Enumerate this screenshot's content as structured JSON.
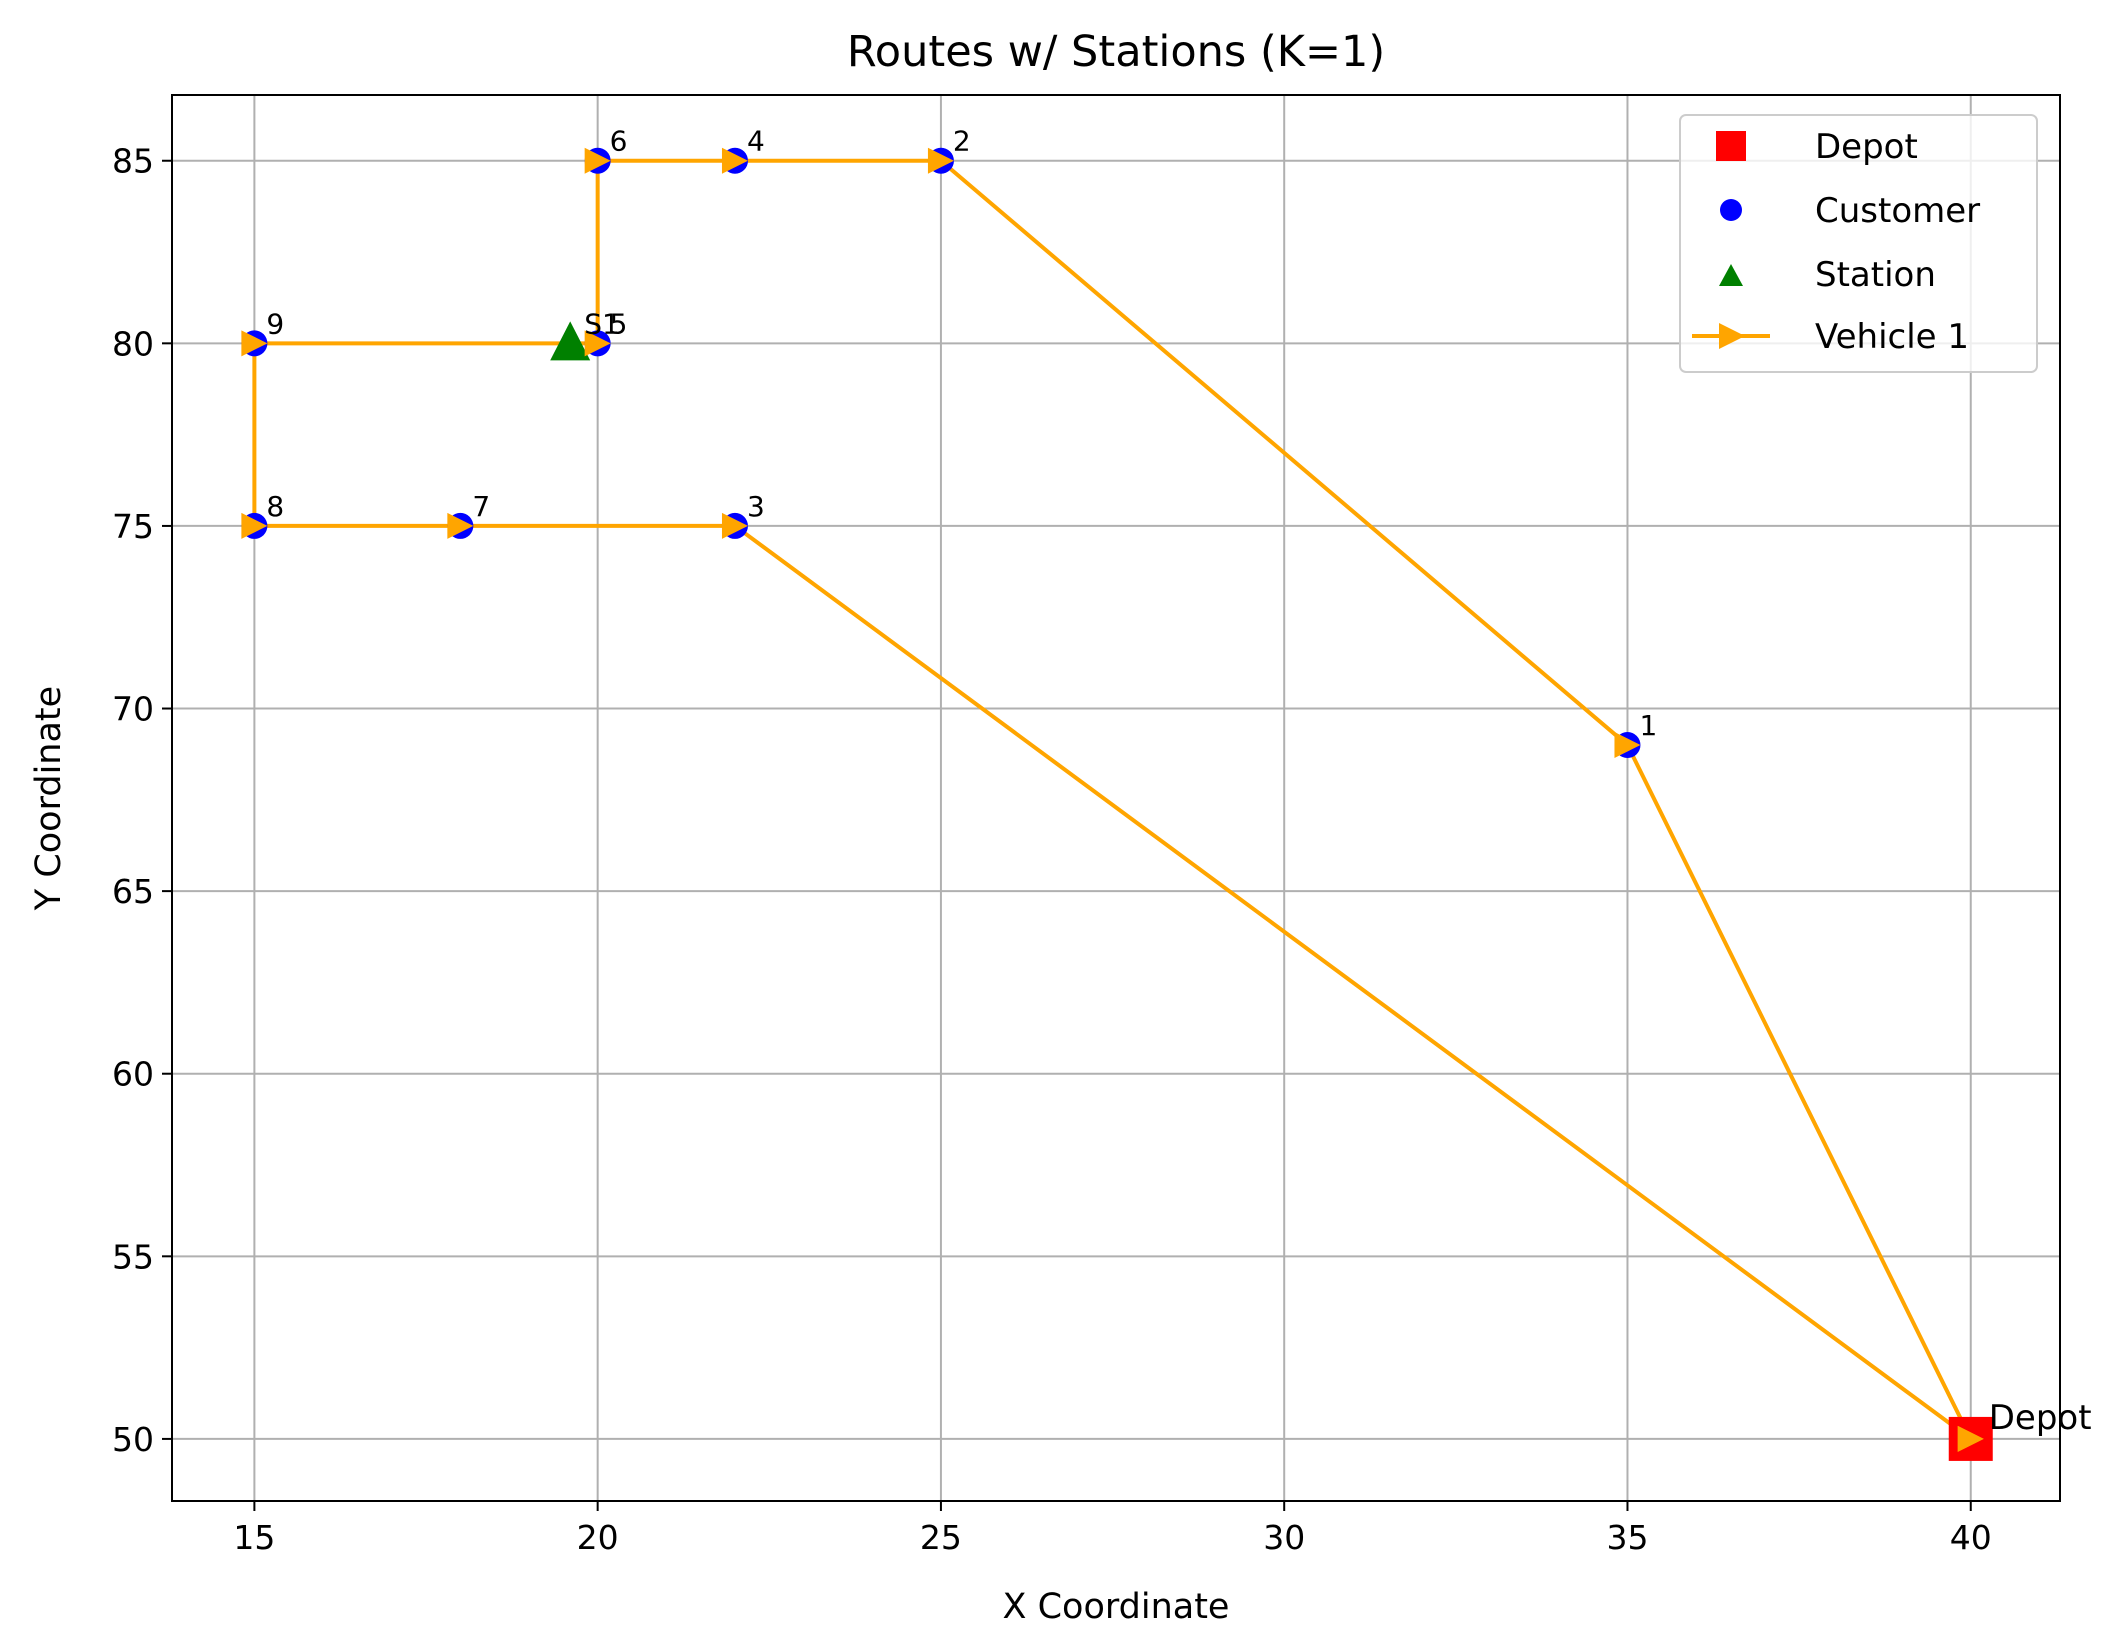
{
  "chart_data": {
    "type": "scatter",
    "title": "Routes w/ Stations (K=1)",
    "xlabel": "X Coordinate",
    "ylabel": "Y Coordinate",
    "xlim": [
      13.8,
      41.3
    ],
    "ylim": [
      48.3,
      86.8
    ],
    "x_ticks": [
      15,
      20,
      25,
      30,
      35,
      40
    ],
    "y_ticks": [
      50,
      55,
      60,
      65,
      70,
      75,
      80,
      85
    ],
    "grid": true,
    "legend_position": "top-right",
    "colors": {
      "depot": "#ff0000",
      "customer": "#0000ff",
      "station": "#008000",
      "route": "#ffa500",
      "grid": "#b0b0b0"
    },
    "depot": {
      "label": "Depot",
      "x": 40,
      "y": 50
    },
    "customers": [
      {
        "label": "1",
        "x": 35,
        "y": 69
      },
      {
        "label": "2",
        "x": 25,
        "y": 85
      },
      {
        "label": "3",
        "x": 22,
        "y": 75
      },
      {
        "label": "4",
        "x": 22,
        "y": 85
      },
      {
        "label": "5",
        "x": 20,
        "y": 80
      },
      {
        "label": "6",
        "x": 20,
        "y": 85
      },
      {
        "label": "7",
        "x": 18,
        "y": 75
      },
      {
        "label": "8",
        "x": 15,
        "y": 75
      },
      {
        "label": "9",
        "x": 15,
        "y": 80
      }
    ],
    "stations": [
      {
        "label": "S1",
        "x": 19.6,
        "y": 80
      }
    ],
    "routes": [
      {
        "name": "Vehicle 1",
        "x": [
          40,
          35,
          25,
          22,
          20,
          20,
          15,
          15,
          18,
          22,
          40
        ],
        "y": [
          50,
          69,
          85,
          85,
          85,
          80,
          80,
          75,
          75,
          75,
          50
        ]
      }
    ],
    "legend": [
      {
        "label": "Depot",
        "marker": "square"
      },
      {
        "label": "Customer",
        "marker": "circle"
      },
      {
        "label": "Station",
        "marker": "triangle"
      },
      {
        "label": "Vehicle 1",
        "marker": "line-arrow"
      }
    ]
  }
}
